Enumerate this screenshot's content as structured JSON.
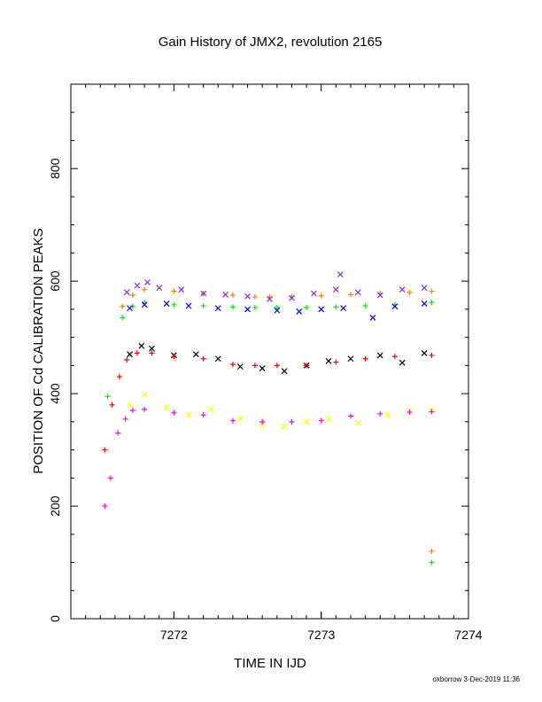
{
  "chart_data": {
    "type": "scatter",
    "title": "Gain History of JMX2, revolution 2165",
    "xlabel": "TIME IN IJD",
    "ylabel": "POSITION OF Cd CALIBRATION PEAKS",
    "footer": "oxborrow  3-Dec-2019 11:36",
    "xlim": [
      7271.3,
      7274.0
    ],
    "ylim": [
      0,
      950
    ],
    "x_ticks": [
      7272,
      7273,
      7274
    ],
    "y_ticks": [
      0,
      200,
      400,
      600,
      800
    ],
    "x_minor_step": 0.1,
    "y_minor_step": 50,
    "grid": false,
    "colors": {
      "orange": "#ff7f00",
      "purple": "#8a2be2",
      "green": "#00ee00",
      "blue": "#0000ff",
      "black": "#000000",
      "red": "#ff0000",
      "yellow": "#ffff00",
      "magenta": "#ff00ff"
    },
    "series": [
      {
        "color": "orange",
        "marker": "plus",
        "x": [
          7271.65,
          7271.72,
          7271.8,
          7272.0,
          7272.2,
          7272.4,
          7272.55,
          7272.65,
          7272.8,
          7273.0,
          7273.2,
          7273.4,
          7273.6,
          7273.75
        ],
        "y": [
          555,
          575,
          585,
          582,
          578,
          575,
          572,
          572,
          572,
          574,
          576,
          578,
          580,
          582
        ]
      },
      {
        "color": "purple",
        "marker": "cross",
        "x": [
          7271.68,
          7271.75,
          7271.82,
          7271.9,
          7272.05,
          7272.2,
          7272.35,
          7272.5,
          7272.65,
          7272.8,
          7272.95,
          7273.1,
          7273.13,
          7273.25,
          7273.4,
          7273.55,
          7273.7
        ],
        "y": [
          580,
          592,
          598,
          588,
          585,
          578,
          576,
          573,
          568,
          570,
          578,
          585,
          612,
          580,
          575,
          585,
          588
        ]
      },
      {
        "color": "green",
        "marker": "plus",
        "x": [
          7271.55,
          7271.65,
          7271.72,
          7271.8,
          7272.0,
          7272.2,
          7272.4,
          7272.55,
          7272.7,
          7272.9,
          7273.1,
          7273.3,
          7273.5,
          7273.75
        ],
        "y": [
          395,
          535,
          555,
          562,
          558,
          556,
          554,
          553,
          553,
          553,
          554,
          556,
          558,
          562
        ]
      },
      {
        "color": "green",
        "marker": "plus",
        "x": [
          7273.75
        ],
        "y": [
          100
        ]
      },
      {
        "color": "orange",
        "marker": "plus",
        "x": [
          7273.75
        ],
        "y": [
          120
        ]
      },
      {
        "color": "blue",
        "marker": "cross",
        "x": [
          7271.7,
          7271.8,
          7271.95,
          7272.1,
          7272.3,
          7272.5,
          7272.7,
          7272.85,
          7273.0,
          7273.15,
          7273.35,
          7273.5,
          7273.7
        ],
        "y": [
          552,
          558,
          560,
          556,
          552,
          550,
          548,
          546,
          550,
          552,
          535,
          555,
          560
        ]
      },
      {
        "color": "black",
        "marker": "cross",
        "x": [
          7271.7,
          7271.78,
          7271.85,
          7272.0,
          7272.15,
          7272.3,
          7272.45,
          7272.6,
          7272.75,
          7272.9,
          7273.05,
          7273.2,
          7273.4,
          7273.55,
          7273.7
        ],
        "y": [
          470,
          485,
          480,
          468,
          470,
          462,
          448,
          445,
          440,
          450,
          458,
          462,
          468,
          455,
          472
        ]
      },
      {
        "color": "red",
        "marker": "plus",
        "x": [
          7271.53,
          7271.58,
          7271.63,
          7271.68,
          7271.75,
          7271.85,
          7272.0,
          7272.2,
          7272.4,
          7272.55,
          7272.7,
          7272.9,
          7273.1,
          7273.3,
          7273.5,
          7273.75
        ],
        "y": [
          300,
          380,
          430,
          460,
          472,
          472,
          466,
          462,
          452,
          450,
          450,
          450,
          456,
          462,
          466,
          468
        ]
      },
      {
        "color": "yellow",
        "marker": "cross",
        "x": [
          7271.7,
          7271.8,
          7271.95,
          7272.1,
          7272.25,
          7272.45,
          7272.6,
          7272.75,
          7272.9,
          7273.05,
          7273.25,
          7273.45,
          7273.6,
          7273.75
        ],
        "y": [
          380,
          398,
          375,
          362,
          372,
          355,
          345,
          342,
          350,
          355,
          348,
          362,
          368,
          370
        ]
      },
      {
        "color": "magenta",
        "marker": "plus",
        "x": [
          7271.53,
          7271.57,
          7271.62,
          7271.67,
          7271.72,
          7271.8,
          7272.0,
          7272.2,
          7272.4,
          7272.6,
          7272.8,
          7273.0,
          7273.2,
          7273.4,
          7273.6,
          7273.75
        ],
        "y": [
          200,
          250,
          330,
          355,
          370,
          372,
          366,
          362,
          352,
          350,
          350,
          352,
          360,
          364,
          367,
          368
        ]
      }
    ]
  }
}
